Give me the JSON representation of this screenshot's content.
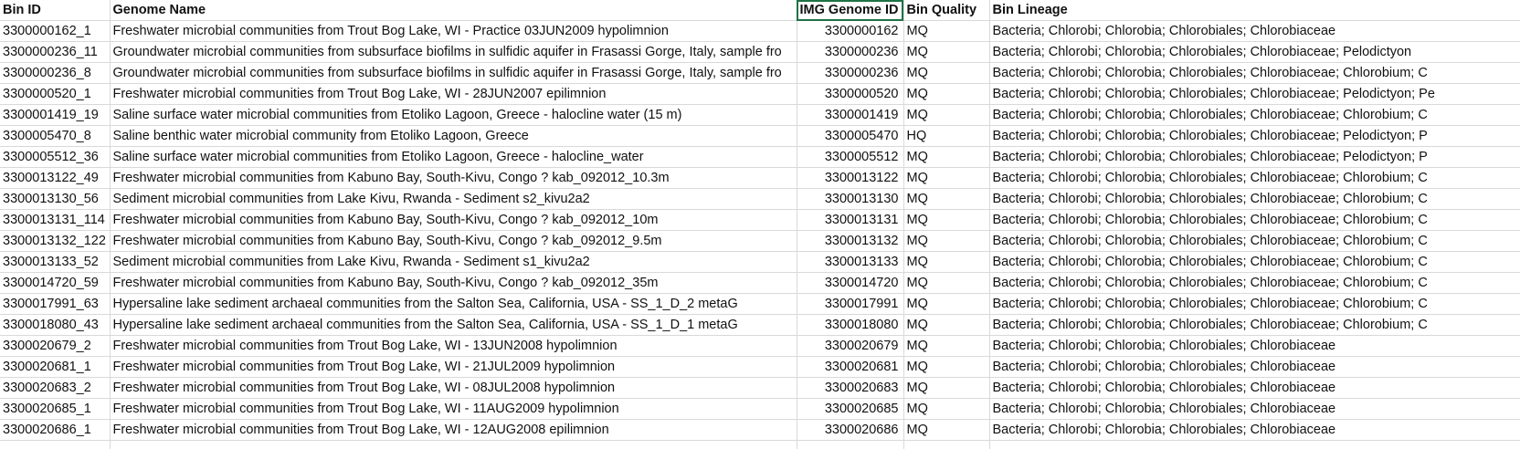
{
  "sheet": {
    "headers": {
      "bin_id": "Bin ID",
      "genome_name": "Genome Name",
      "img_genome_id": "IMG Genome ID",
      "bin_quality": "Bin Quality",
      "bin_lineage": "Bin Lineage"
    },
    "rows": [
      {
        "bin_id": "3300000162_1",
        "genome_name": "Freshwater microbial communities from Trout Bog Lake, WI - Practice 03JUN2009 hypolimnion",
        "img_genome_id": "3300000162",
        "bin_quality": "MQ",
        "bin_lineage": "Bacteria; Chlorobi; Chlorobia; Chlorobiales; Chlorobiaceae"
      },
      {
        "bin_id": "3300000236_11",
        "genome_name": "Groundwater microbial communities from subsurface biofilms in sulfidic aquifer in Frasassi Gorge, Italy, sample fro",
        "img_genome_id": "3300000236",
        "bin_quality": "MQ",
        "bin_lineage": "Bacteria; Chlorobi; Chlorobia; Chlorobiales; Chlorobiaceae; Pelodictyon"
      },
      {
        "bin_id": "3300000236_8",
        "genome_name": "Groundwater microbial communities from subsurface biofilms in sulfidic aquifer in Frasassi Gorge, Italy, sample fro",
        "img_genome_id": "3300000236",
        "bin_quality": "MQ",
        "bin_lineage": "Bacteria; Chlorobi; Chlorobia; Chlorobiales; Chlorobiaceae; Chlorobium; C"
      },
      {
        "bin_id": "3300000520_1",
        "genome_name": "Freshwater microbial communities from Trout Bog Lake, WI - 28JUN2007 epilimnion",
        "img_genome_id": "3300000520",
        "bin_quality": "MQ",
        "bin_lineage": "Bacteria; Chlorobi; Chlorobia; Chlorobiales; Chlorobiaceae; Pelodictyon; Pe"
      },
      {
        "bin_id": "3300001419_19",
        "genome_name": "Saline surface water microbial communities from Etoliko Lagoon, Greece - halocline water (15 m)",
        "img_genome_id": "3300001419",
        "bin_quality": "MQ",
        "bin_lineage": "Bacteria; Chlorobi; Chlorobia; Chlorobiales; Chlorobiaceae; Chlorobium; C"
      },
      {
        "bin_id": "3300005470_8",
        "genome_name": "Saline benthic water microbial community from Etoliko Lagoon, Greece",
        "img_genome_id": "3300005470",
        "bin_quality": "HQ",
        "bin_lineage": "Bacteria; Chlorobi; Chlorobia; Chlorobiales; Chlorobiaceae; Pelodictyon; P"
      },
      {
        "bin_id": "3300005512_36",
        "genome_name": "Saline surface water microbial communities from Etoliko Lagoon, Greece - halocline_water",
        "img_genome_id": "3300005512",
        "bin_quality": "MQ",
        "bin_lineage": "Bacteria; Chlorobi; Chlorobia; Chlorobiales; Chlorobiaceae; Pelodictyon; P"
      },
      {
        "bin_id": "3300013122_49",
        "genome_name": "Freshwater microbial communities from Kabuno Bay, South-Kivu, Congo ? kab_092012_10.3m",
        "img_genome_id": "3300013122",
        "bin_quality": "MQ",
        "bin_lineage": "Bacteria; Chlorobi; Chlorobia; Chlorobiales; Chlorobiaceae; Chlorobium; C"
      },
      {
        "bin_id": "3300013130_56",
        "genome_name": "Sediment microbial communities from Lake Kivu, Rwanda - Sediment s2_kivu2a2",
        "img_genome_id": "3300013130",
        "bin_quality": "MQ",
        "bin_lineage": "Bacteria; Chlorobi; Chlorobia; Chlorobiales; Chlorobiaceae; Chlorobium; C"
      },
      {
        "bin_id": "3300013131_114",
        "genome_name": "Freshwater microbial communities from Kabuno Bay, South-Kivu, Congo ? kab_092012_10m",
        "img_genome_id": "3300013131",
        "bin_quality": "MQ",
        "bin_lineage": "Bacteria; Chlorobi; Chlorobia; Chlorobiales; Chlorobiaceae; Chlorobium; C"
      },
      {
        "bin_id": "3300013132_122",
        "genome_name": "Freshwater microbial communities from Kabuno Bay, South-Kivu, Congo ? kab_092012_9.5m",
        "img_genome_id": "3300013132",
        "bin_quality": "MQ",
        "bin_lineage": "Bacteria; Chlorobi; Chlorobia; Chlorobiales; Chlorobiaceae; Chlorobium; C"
      },
      {
        "bin_id": "3300013133_52",
        "genome_name": "Sediment microbial communities from Lake Kivu, Rwanda - Sediment s1_kivu2a2",
        "img_genome_id": "3300013133",
        "bin_quality": "MQ",
        "bin_lineage": "Bacteria; Chlorobi; Chlorobia; Chlorobiales; Chlorobiaceae; Chlorobium; C"
      },
      {
        "bin_id": "3300014720_59",
        "genome_name": "Freshwater microbial communities from Kabuno Bay, South-Kivu, Congo ? kab_092012_35m",
        "img_genome_id": "3300014720",
        "bin_quality": "MQ",
        "bin_lineage": "Bacteria; Chlorobi; Chlorobia; Chlorobiales; Chlorobiaceae; Chlorobium; C"
      },
      {
        "bin_id": "3300017991_63",
        "genome_name": "Hypersaline lake sediment archaeal communities from the Salton Sea, California, USA - SS_1_D_2 metaG",
        "img_genome_id": "3300017991",
        "bin_quality": "MQ",
        "bin_lineage": "Bacteria; Chlorobi; Chlorobia; Chlorobiales; Chlorobiaceae; Chlorobium; C"
      },
      {
        "bin_id": "3300018080_43",
        "genome_name": "Hypersaline lake sediment archaeal communities from the Salton Sea, California, USA - SS_1_D_1 metaG",
        "img_genome_id": "3300018080",
        "bin_quality": "MQ",
        "bin_lineage": "Bacteria; Chlorobi; Chlorobia; Chlorobiales; Chlorobiaceae; Chlorobium; C"
      },
      {
        "bin_id": "3300020679_2",
        "genome_name": "Freshwater microbial communities from Trout Bog Lake, WI - 13JUN2008 hypolimnion",
        "img_genome_id": "3300020679",
        "bin_quality": "MQ",
        "bin_lineage": "Bacteria; Chlorobi; Chlorobia; Chlorobiales; Chlorobiaceae"
      },
      {
        "bin_id": "3300020681_1",
        "genome_name": "Freshwater microbial communities from Trout Bog Lake, WI - 21JUL2009 hypolimnion",
        "img_genome_id": "3300020681",
        "bin_quality": "MQ",
        "bin_lineage": "Bacteria; Chlorobi; Chlorobia; Chlorobiales; Chlorobiaceae"
      },
      {
        "bin_id": "3300020683_2",
        "genome_name": "Freshwater microbial communities from Trout Bog Lake, WI - 08JUL2008 hypolimnion",
        "img_genome_id": "3300020683",
        "bin_quality": "MQ",
        "bin_lineage": "Bacteria; Chlorobi; Chlorobia; Chlorobiales; Chlorobiaceae"
      },
      {
        "bin_id": "3300020685_1",
        "genome_name": "Freshwater microbial communities from Trout Bog Lake, WI - 11AUG2009 hypolimnion",
        "img_genome_id": "3300020685",
        "bin_quality": "MQ",
        "bin_lineage": "Bacteria; Chlorobi; Chlorobia; Chlorobiales; Chlorobiaceae"
      },
      {
        "bin_id": "3300020686_1",
        "genome_name": "Freshwater microbial communities from Trout Bog Lake, WI - 12AUG2008 epilimnion",
        "img_genome_id": "3300020686",
        "bin_quality": "MQ",
        "bin_lineage": "Bacteria; Chlorobi; Chlorobia; Chlorobiales; Chlorobiaceae"
      }
    ]
  }
}
